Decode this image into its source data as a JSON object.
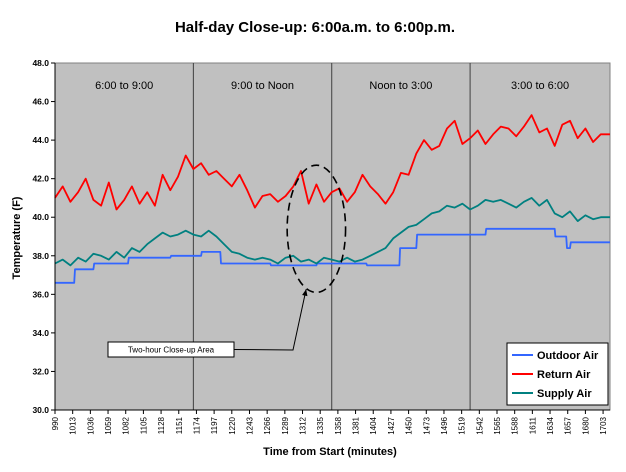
{
  "chart_data": {
    "type": "line",
    "title": "Half-day Close-up:  6:00a.m. to 6:00p.m.",
    "xlabel": "Time from Start (minutes)",
    "ylabel": "Temperature (F)",
    "ylim": [
      30,
      48
    ],
    "xlim": [
      990,
      1712
    ],
    "yticks": [
      "30.0",
      "32.0",
      "34.0",
      "36.0",
      "38.0",
      "40.0",
      "42.0",
      "44.0",
      "46.0",
      "48.0"
    ],
    "xticks": [
      "990",
      "1013",
      "1036",
      "1059",
      "1082",
      "1105",
      "1128",
      "1151",
      "1174",
      "1197",
      "1220",
      "1243",
      "1266",
      "1289",
      "1312",
      "1335",
      "1358",
      "1381",
      "1404",
      "1427",
      "1450",
      "1473",
      "1496",
      "1519",
      "1542",
      "1565",
      "1588",
      "1611",
      "1634",
      "1657",
      "1680",
      "1703"
    ],
    "periods": [
      {
        "label": "6:00 to 9:00",
        "start": 990,
        "end": 1170
      },
      {
        "label": "9:00 to Noon",
        "start": 1170,
        "end": 1350
      },
      {
        "label": "Noon to 3:00",
        "start": 1350,
        "end": 1530
      },
      {
        "label": "3:00 to 6:00",
        "start": 1530,
        "end": 1712
      }
    ],
    "annotation": {
      "text": "Two-hour Close-up Area",
      "circle_center": [
        1330,
        39.4
      ],
      "circle_rx_minutes": 38,
      "circle_ry_temp": 3.3
    },
    "legend_position": "bottom-right",
    "grid": false,
    "series": [
      {
        "name": "Outdoor Air",
        "color": "#3366ff",
        "x": [
          990,
          1015,
          1016,
          1040,
          1041,
          1085,
          1086,
          1140,
          1141,
          1180,
          1181,
          1205,
          1206,
          1270,
          1271,
          1330,
          1331,
          1395,
          1396,
          1438,
          1439,
          1460,
          1461,
          1550,
          1551,
          1640,
          1641,
          1655,
          1656,
          1660,
          1661,
          1712
        ],
        "y": [
          36.6,
          36.6,
          37.3,
          37.3,
          37.6,
          37.6,
          37.9,
          37.9,
          38.0,
          38.0,
          38.2,
          38.2,
          37.6,
          37.6,
          37.5,
          37.5,
          37.6,
          37.6,
          37.5,
          37.5,
          38.4,
          38.4,
          39.1,
          39.1,
          39.4,
          39.4,
          39.0,
          39.0,
          38.4,
          38.4,
          38.7,
          38.7
        ]
      },
      {
        "name": "Return Air",
        "color": "#ff0000",
        "x": [
          990,
          1000,
          1010,
          1020,
          1030,
          1040,
          1050,
          1060,
          1070,
          1080,
          1090,
          1100,
          1110,
          1120,
          1130,
          1140,
          1150,
          1160,
          1170,
          1180,
          1190,
          1200,
          1210,
          1220,
          1230,
          1240,
          1250,
          1260,
          1270,
          1280,
          1290,
          1300,
          1310,
          1320,
          1330,
          1340,
          1350,
          1360,
          1370,
          1380,
          1390,
          1400,
          1410,
          1420,
          1430,
          1440,
          1450,
          1460,
          1470,
          1480,
          1490,
          1500,
          1510,
          1520,
          1530,
          1540,
          1550,
          1560,
          1570,
          1580,
          1590,
          1600,
          1610,
          1620,
          1630,
          1640,
          1650,
          1660,
          1670,
          1680,
          1690,
          1700,
          1712
        ],
        "y": [
          41.0,
          41.6,
          40.8,
          41.3,
          42.0,
          40.9,
          40.6,
          41.8,
          40.4,
          40.9,
          41.6,
          40.7,
          41.3,
          40.6,
          42.2,
          41.4,
          42.1,
          43.2,
          42.5,
          42.8,
          42.2,
          42.4,
          42.0,
          41.6,
          42.2,
          41.4,
          40.5,
          41.1,
          41.2,
          40.8,
          41.1,
          41.6,
          42.4,
          40.7,
          41.7,
          40.8,
          41.3,
          41.5,
          40.8,
          41.3,
          42.2,
          41.6,
          41.2,
          40.7,
          41.3,
          42.3,
          42.2,
          43.3,
          44.0,
          43.5,
          43.7,
          44.6,
          45.0,
          43.8,
          44.1,
          44.5,
          43.8,
          44.3,
          44.7,
          44.6,
          44.2,
          44.7,
          45.3,
          44.4,
          44.6,
          43.7,
          44.8,
          45.0,
          44.1,
          44.6,
          43.9,
          44.3,
          44.3
        ]
      },
      {
        "name": "Supply Air",
        "color": "#008080",
        "x": [
          990,
          1000,
          1010,
          1020,
          1030,
          1040,
          1050,
          1060,
          1070,
          1080,
          1090,
          1100,
          1110,
          1120,
          1130,
          1140,
          1150,
          1160,
          1170,
          1180,
          1190,
          1200,
          1210,
          1220,
          1230,
          1240,
          1250,
          1260,
          1270,
          1280,
          1290,
          1300,
          1310,
          1320,
          1330,
          1340,
          1350,
          1360,
          1370,
          1380,
          1390,
          1400,
          1410,
          1420,
          1430,
          1440,
          1450,
          1460,
          1470,
          1480,
          1490,
          1500,
          1510,
          1520,
          1530,
          1540,
          1550,
          1560,
          1570,
          1580,
          1590,
          1600,
          1610,
          1620,
          1630,
          1640,
          1650,
          1660,
          1670,
          1680,
          1690,
          1700,
          1712
        ],
        "y": [
          37.6,
          37.8,
          37.5,
          37.9,
          37.7,
          38.1,
          38.0,
          37.8,
          38.2,
          37.9,
          38.4,
          38.2,
          38.6,
          38.9,
          39.2,
          39.0,
          39.1,
          39.3,
          39.1,
          39.0,
          39.3,
          39.0,
          38.6,
          38.2,
          38.1,
          37.9,
          37.8,
          37.9,
          37.8,
          37.6,
          37.9,
          38.0,
          37.7,
          37.8,
          37.6,
          37.9,
          37.8,
          37.7,
          37.9,
          37.7,
          37.8,
          38.0,
          38.2,
          38.4,
          38.9,
          39.2,
          39.5,
          39.6,
          39.9,
          40.2,
          40.3,
          40.6,
          40.5,
          40.7,
          40.4,
          40.6,
          40.9,
          40.8,
          40.9,
          40.7,
          40.5,
          40.8,
          41.0,
          40.6,
          40.9,
          40.2,
          40.0,
          40.3,
          39.8,
          40.1,
          39.9,
          40.0,
          40.0
        ]
      }
    ]
  }
}
